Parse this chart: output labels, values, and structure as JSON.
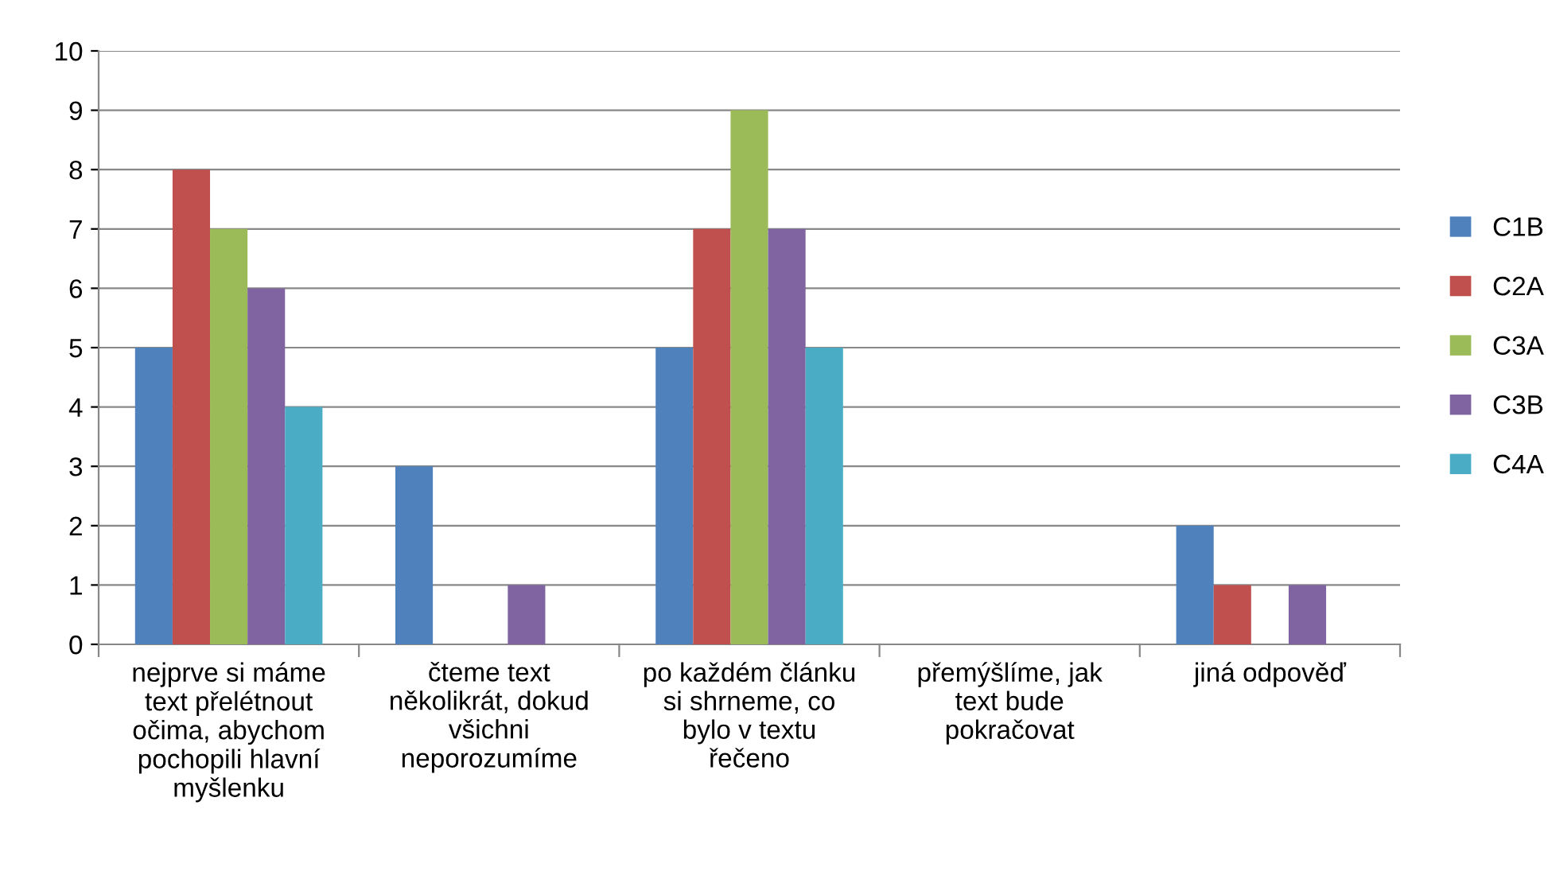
{
  "chart_data": {
    "type": "bar",
    "categories": [
      "nejprve si máme\ntext přelétnout\nočima, abychom\npochopili hlavní\nmyšlenku",
      "čteme text\nněkolikrát, dokud\nvšichni\nneporozumíme",
      "po každém článku\nsi shrneme, co\nbylo v textu\nřečeno",
      "přemýšlíme, jak\ntext bude\npokračovat",
      "jiná odpověď"
    ],
    "series": [
      {
        "name": "C1B",
        "color": "#4f81bd",
        "values": [
          5,
          3,
          5,
          0,
          2
        ]
      },
      {
        "name": "C2A",
        "color": "#c0504d",
        "values": [
          8,
          0,
          7,
          0,
          1
        ]
      },
      {
        "name": "C3A",
        "color": "#9bbb59",
        "values": [
          7,
          0,
          9,
          0,
          0
        ]
      },
      {
        "name": "C3B",
        "color": "#8064a2",
        "values": [
          6,
          1,
          7,
          0,
          1
        ]
      },
      {
        "name": "C4A",
        "color": "#4bacc6",
        "values": [
          4,
          0,
          5,
          0,
          0
        ]
      }
    ],
    "ylim": [
      0,
      10
    ],
    "yticks": [
      0,
      1,
      2,
      3,
      4,
      5,
      6,
      7,
      8,
      9,
      10
    ],
    "grid": "y",
    "legend": "right"
  }
}
